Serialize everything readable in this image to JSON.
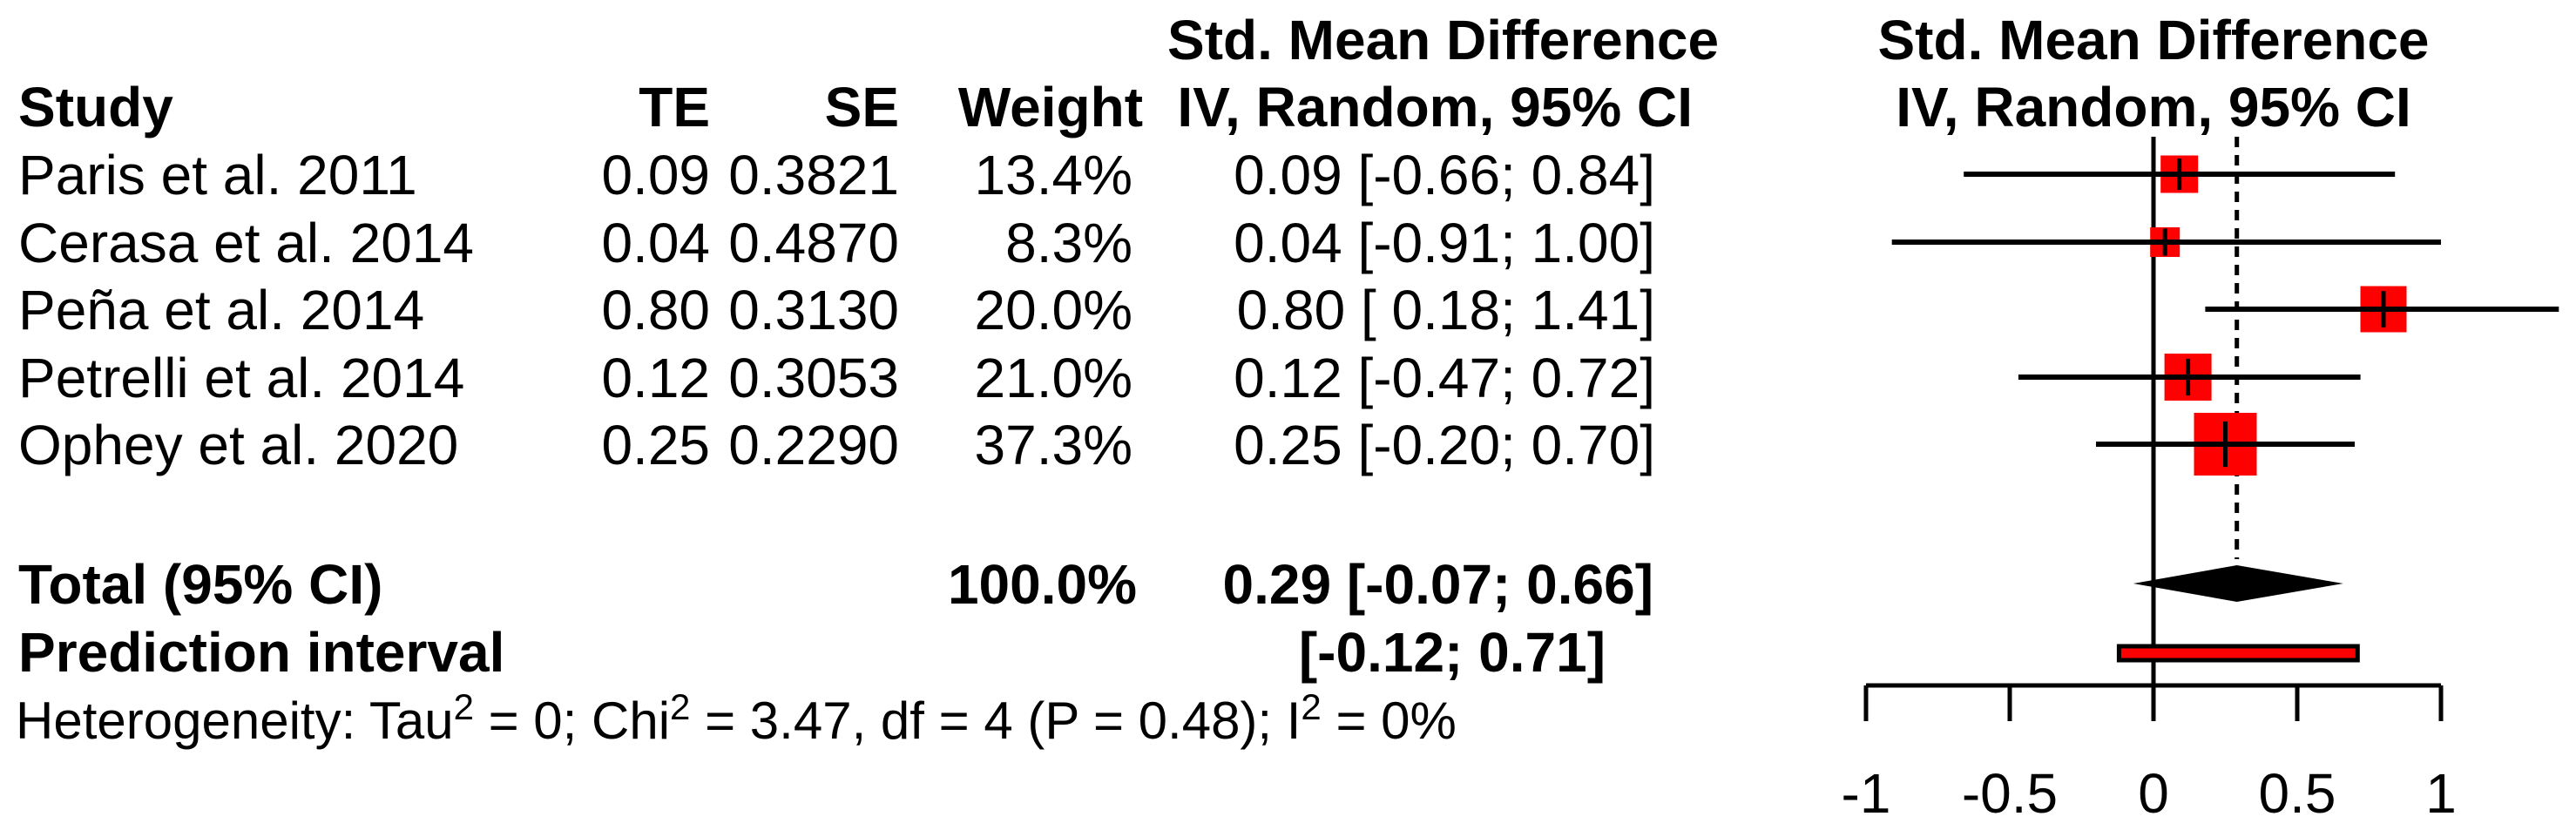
{
  "table": {
    "header_top": "Std. Mean Difference",
    "columns": {
      "study": "Study",
      "te": "TE",
      "se": "SE",
      "weight": "Weight",
      "ci": "IV, Random, 95% CI"
    },
    "rows": [
      {
        "study": "Paris et al. 2011",
        "te": "0.09",
        "se": "0.3821",
        "weight": "13.4%",
        "ci": "0.09 [-0.66; 0.84]"
      },
      {
        "study": "Cerasa et al. 2014",
        "te": "0.04",
        "se": "0.4870",
        "weight": "8.3%",
        "ci": "0.04 [-0.91; 1.00]"
      },
      {
        "study": "Peña et al. 2014",
        "te": "0.80",
        "se": "0.3130",
        "weight": "20.0%",
        "ci": "0.80 [ 0.18; 1.41]"
      },
      {
        "study": "Petrelli et al. 2014",
        "te": "0.12",
        "se": "0.3053",
        "weight": "21.0%",
        "ci": "0.12 [-0.47; 0.72]"
      },
      {
        "study": "Ophey et al. 2020",
        "te": "0.25",
        "se": "0.2290",
        "weight": "37.3%",
        "ci": "0.25 [-0.20; 0.70]"
      }
    ],
    "total": {
      "label": "Total (95% CI)",
      "weight": "100.0%",
      "ci": "0.29 [-0.07; 0.66]"
    },
    "prediction": {
      "label": "Prediction interval",
      "ci": "[-0.12; 0.71]"
    },
    "heterogeneity_parts": [
      {
        "t": "Heterogeneity: Tau"
      },
      {
        "s": "2"
      },
      {
        "t": " = 0; Chi"
      },
      {
        "s": "2"
      },
      {
        "t": " = 3.47, df = 4 (P = 0.48); I"
      },
      {
        "s": "2"
      },
      {
        "t": " = 0%"
      }
    ]
  },
  "plot_header": {
    "line1": "Std. Mean Difference",
    "line2": "IV, Random, 95% CI"
  },
  "chart_data": {
    "type": "forest",
    "title": "Std. Mean Difference, IV, Random, 95% CI",
    "effect_measure": "Std. Mean Difference",
    "model": "IV, Random, 95% CI",
    "studies": [
      {
        "name": "Paris et al. 2011",
        "te": 0.09,
        "lo": -0.66,
        "hi": 0.84,
        "weight": 13.4
      },
      {
        "name": "Cerasa et al. 2014",
        "te": 0.04,
        "lo": -0.91,
        "hi": 1.0,
        "weight": 8.3
      },
      {
        "name": "Peña et al. 2014",
        "te": 0.8,
        "lo": 0.18,
        "hi": 1.41,
        "weight": 20.0
      },
      {
        "name": "Petrelli et al. 2014",
        "te": 0.12,
        "lo": -0.47,
        "hi": 0.72,
        "weight": 21.0
      },
      {
        "name": "Ophey et al. 2020",
        "te": 0.25,
        "lo": -0.2,
        "hi": 0.7,
        "weight": 37.3
      }
    ],
    "pooled": {
      "label": "Total (95% CI)",
      "te": 0.29,
      "lo": -0.07,
      "hi": 0.66,
      "weight": 100.0
    },
    "prediction_interval": {
      "label": "Prediction interval",
      "lo": -0.12,
      "hi": 0.71
    },
    "heterogeneity": {
      "tau2": 0,
      "chi2": 3.47,
      "df": 4,
      "p": 0.48,
      "i2_pct": 0
    },
    "axis_ticks": [
      -1,
      -0.5,
      0,
      0.5,
      1
    ],
    "axis_tick_labels": [
      "-1",
      "-0.5",
      "0",
      "0.5",
      "1"
    ],
    "xlim": [
      -1,
      1.47
    ],
    "zero_line": 0,
    "pooled_dashed_line": 0.29,
    "grid": false,
    "colors": {
      "square": "#FF0000",
      "prediction_bar_fill": "#FF0000",
      "lines": "#000000",
      "diamond": "#000000",
      "text": "#000000",
      "background": "#FFFFFF"
    }
  }
}
